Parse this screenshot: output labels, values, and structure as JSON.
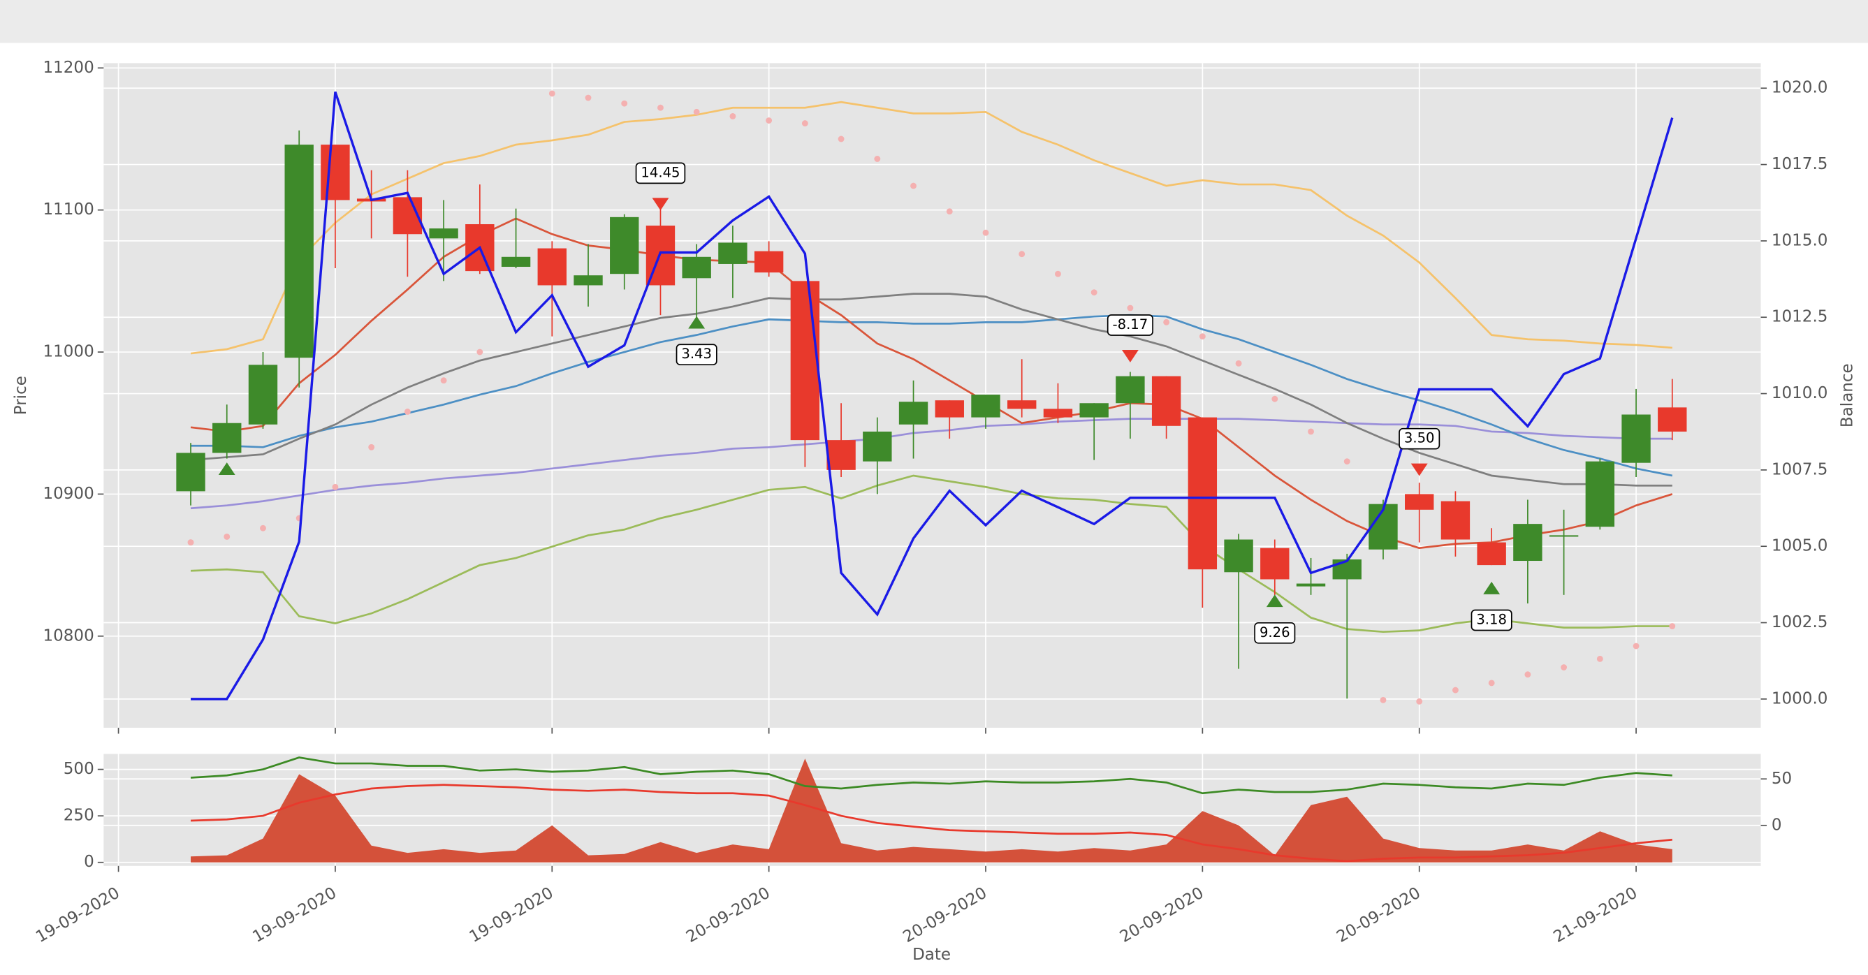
{
  "chart_data": [
    {
      "type": "candlestick",
      "ylabel": "Price",
      "y2label": "Balance",
      "xlim": [
        -2.41,
        43.45
      ],
      "ylim": [
        10735.5,
        11203.4
      ],
      "yticks": [
        10800,
        10900,
        11000,
        11100,
        11200
      ],
      "y2lim": [
        999.06,
        1020.82
      ],
      "y2ticks": [
        {
          "value": 1000,
          "label": "1000.0"
        },
        {
          "value": 1002.5,
          "label": "1002.5"
        },
        {
          "value": 1005,
          "label": "1005.0"
        },
        {
          "value": 1007.5,
          "label": "1007.5"
        },
        {
          "value": 1010,
          "label": "1010.0"
        },
        {
          "value": 1012.5,
          "label": "1012.5"
        },
        {
          "value": 1015,
          "label": "1015.0"
        },
        {
          "value": 1017.5,
          "label": "1017.5"
        },
        {
          "value": 1020,
          "label": "1020.0"
        }
      ],
      "grid": true,
      "up_color": "#3e8a2a",
      "down_color": "#e8392c",
      "open": [
        10902,
        10929,
        10949,
        10996,
        11146,
        11108,
        11109,
        11080,
        11090,
        11060,
        11073,
        11047,
        11055,
        11089,
        11052,
        11062,
        11071,
        11050,
        10938,
        10923,
        10949,
        10966,
        10954,
        10966,
        10960,
        10954,
        10964,
        10983,
        10954,
        10845,
        10862,
        10835,
        10840,
        10861,
        10900,
        10895,
        10866,
        10853,
        10870,
        10877,
        10922,
        10961
      ],
      "high": [
        10936,
        10963,
        11000,
        11156,
        11146,
        11128,
        11128,
        11107,
        11118,
        11101,
        11078,
        11076,
        11097,
        11101,
        11076,
        11089,
        11078,
        11050,
        10964,
        10954,
        10980,
        10966,
        10970,
        10995,
        10978,
        10964,
        10986,
        10983,
        10954,
        10872,
        10868,
        10855,
        10858,
        10896,
        10908,
        10902,
        10876,
        10896,
        10889,
        10925,
        10974,
        10981
      ],
      "low": [
        10892,
        10925,
        10946,
        10975,
        11059,
        11080,
        11053,
        11050,
        11055,
        11059,
        11011,
        11032,
        11044,
        11026,
        11023,
        11038,
        11053,
        10919,
        10912,
        10900,
        10925,
        10939,
        10946,
        10954,
        10950,
        10924,
        10939,
        10939,
        10820,
        10777,
        10829,
        10829,
        10756,
        10854,
        10866,
        10856,
        10850,
        10823,
        10829,
        10875,
        10912,
        10938
      ],
      "close": [
        10929,
        10950,
        10991,
        11146,
        11107,
        11106,
        11083,
        11087,
        11057,
        11067,
        11047,
        11054,
        11095,
        11047,
        11067,
        11077,
        11056,
        10938,
        10917,
        10944,
        10965,
        10954,
        10970,
        10960,
        10954,
        10964,
        10983,
        10948,
        10847,
        10868,
        10840,
        10837,
        10854,
        10893,
        10889,
        10868,
        10850,
        10879,
        10871,
        10923,
        10956,
        10944
      ],
      "series": [
        {
          "type": "line",
          "color": "#f5c26b",
          "values": [
            10999,
            11002,
            11009,
            11065,
            11091,
            11111,
            11122,
            11133,
            11138,
            11146,
            11149,
            11153,
            11162,
            11164,
            11167,
            11172,
            11172,
            11172,
            11176,
            11172,
            11168,
            11168,
            11169,
            11155,
            11146,
            11135,
            11126,
            11117,
            11121,
            11118,
            11118,
            11114,
            11096,
            11082,
            11063,
            11038,
            11012,
            11009,
            11008,
            11006,
            11005,
            11003
          ]
        },
        {
          "type": "line",
          "color": "#9bbb59",
          "values": [
            10846,
            10847,
            10845,
            10814,
            10809,
            10816,
            10826,
            10838,
            10850,
            10855,
            10863,
            10871,
            10875,
            10883,
            10889,
            10896,
            10903,
            10905,
            10897,
            10906,
            10913,
            10909,
            10905,
            10900,
            10897,
            10896,
            10893,
            10891,
            10864,
            10847,
            10831,
            10813,
            10805,
            10803,
            10804,
            10809,
            10812,
            10809,
            10806,
            10806,
            10807,
            10807
          ]
        },
        {
          "type": "line",
          "color": "#9a8fd9",
          "values": [
            10890,
            10892,
            10895,
            10899,
            10903,
            10906,
            10908,
            10911,
            10913,
            10915,
            10918,
            10921,
            10924,
            10927,
            10929,
            10932,
            10933,
            10935,
            10937,
            10939,
            10943,
            10945,
            10948,
            10949,
            10951,
            10952,
            10953,
            10953,
            10953,
            10953,
            10952,
            10951,
            10950,
            10949,
            10949,
            10948,
            10944,
            10943,
            10941,
            10940,
            10939,
            10939
          ]
        },
        {
          "type": "line",
          "color": "#4c8fc4",
          "values": [
            10934,
            10934,
            10933,
            10941,
            10947,
            10951,
            10957,
            10963,
            10970,
            10976,
            10985,
            10993,
            11000,
            11007,
            11012,
            11018,
            11023,
            11022,
            11021,
            11021,
            11020,
            11020,
            11021,
            11021,
            11023,
            11025,
            11026,
            11025,
            11016,
            11009,
            11000,
            10991,
            10981,
            10973,
            10966,
            10958,
            10949,
            10939,
            10931,
            10925,
            10918,
            10913
          ]
        },
        {
          "type": "line",
          "color": "#7f7f7f",
          "values": [
            10924,
            10926,
            10928,
            10939,
            10949,
            10963,
            10975,
            10985,
            10994,
            11000,
            11006,
            11012,
            11018,
            11024,
            11027,
            11032,
            11038,
            11037,
            11037,
            11039,
            11041,
            11041,
            11039,
            11030,
            11023,
            11016,
            11011,
            11004,
            10994,
            10984,
            10974,
            10963,
            10950,
            10939,
            10929,
            10921,
            10913,
            10910,
            10907,
            10907,
            10906,
            10906
          ]
        },
        {
          "type": "line",
          "color": "#d9553a",
          "values": [
            10947,
            10944,
            10948,
            10978,
            10998,
            11022,
            11044,
            11067,
            11082,
            11094,
            11083,
            11075,
            11072,
            11068,
            11065,
            11064,
            11063,
            11042,
            11026,
            11006,
            10995,
            10980,
            10965,
            10950,
            10954,
            10958,
            10964,
            10963,
            10953,
            10933,
            10913,
            10896,
            10881,
            10870,
            10862,
            10865,
            10866,
            10871,
            10875,
            10881,
            10892,
            10900
          ]
        },
        {
          "type": "scatter",
          "color": "#f4b0b0",
          "values": [
            10866,
            10870,
            10876,
            10883,
            10905,
            10933,
            10958,
            10980,
            11000,
            null,
            11182,
            11179,
            11175,
            11172,
            11169,
            11166,
            11163,
            11161,
            11150,
            11136,
            11117,
            11099,
            11084,
            11069,
            11055,
            11042,
            11031,
            11021,
            11011,
            10992,
            10967,
            10944,
            10923,
            10755,
            10754,
            10762,
            10767,
            10773,
            10778,
            10784,
            10793,
            10807
          ]
        },
        {
          "type": "line",
          "axis": "y2",
          "color": "#1a1ae6",
          "values": [
            1000.0,
            1000.0,
            1001.95,
            1005.15,
            1019.88,
            1016.34,
            1016.57,
            1013.92,
            1014.78,
            1012.01,
            1013.22,
            1010.88,
            1011.58,
            1014.62,
            1014.62,
            1015.67,
            1016.45,
            1014.58,
            1004.13,
            1002.77,
            1005.26,
            1006.82,
            1005.69,
            1006.82,
            1006.28,
            1005.73,
            1006.59,
            1006.59,
            1006.59,
            1006.59,
            1006.59,
            1004.13,
            1004.52,
            1006.2,
            1010.14,
            1010.14,
            1010.14,
            1008.93,
            1010.64,
            1011.15,
            1015.09,
            1019.03
          ]
        }
      ],
      "markers": [
        {
          "type": "buy",
          "color": "#3e8a2a",
          "x": [
            1,
            14,
            30,
            36
          ],
          "values": [
            10917,
            11020,
            10824,
            10833
          ],
          "labels": [
            null,
            "3.43",
            "9.26",
            "3.18"
          ]
        },
        {
          "type": "sell",
          "color": "#e8392c",
          "x": [
            13,
            26,
            34
          ],
          "values": [
            11105,
            10998,
            10918
          ],
          "labels": [
            "14.45",
            "-8.17",
            "3.50"
          ]
        }
      ]
    },
    {
      "type": "area",
      "xlabel": "Date",
      "xlim": [
        -2.41,
        43.45
      ],
      "xticks": [
        {
          "value": -2,
          "label": "19-09-2020"
        },
        {
          "value": 4,
          "label": "19-09-2020"
        },
        {
          "value": 10,
          "label": "19-09-2020"
        },
        {
          "value": 16,
          "label": "20-09-2020"
        },
        {
          "value": 22,
          "label": "20-09-2020"
        },
        {
          "value": 28,
          "label": "20-09-2020"
        },
        {
          "value": 34,
          "label": "20-09-2020"
        },
        {
          "value": 40,
          "label": "21-09-2020"
        }
      ],
      "ylim": [
        -19,
        583
      ],
      "yticks": [
        0,
        250,
        500
      ],
      "y2lim": [
        -43.6,
        76.9
      ],
      "y2ticks": [
        0,
        50
      ],
      "grid": true,
      "series": [
        {
          "type": "area",
          "color": "#d4513a",
          "values": [
            32,
            38,
            128,
            474,
            359,
            90,
            51,
            71,
            51,
            64,
            199,
            38,
            45,
            109,
            51,
            96,
            71,
            558,
            103,
            64,
            83,
            71,
            58,
            71,
            58,
            77,
            64,
            96,
            276,
            199,
            38,
            308,
            353,
            128,
            77,
            64,
            64,
            96,
            64,
            167,
            96,
            71
          ]
        },
        {
          "type": "line",
          "axis": "y2",
          "color": "#3c8a24",
          "values": [
            51.3,
            53.8,
            60.3,
            73.1,
            66.7,
            66.7,
            64.1,
            64.1,
            59,
            60.3,
            57.7,
            59,
            62.8,
            55.1,
            57.7,
            59,
            55.1,
            42.3,
            39.7,
            43.6,
            46.2,
            44.9,
            47.4,
            46.2,
            46.2,
            47.4,
            50,
            46.2,
            34.6,
            38.5,
            35.9,
            35.9,
            38.5,
            44.9,
            43.6,
            41,
            39.7,
            44.9,
            43.6,
            51.3,
            56.4,
            53.8
          ]
        },
        {
          "type": "line",
          "axis": "y2",
          "color": "#e8392c",
          "values": [
            5.1,
            6.4,
            10.3,
            24.4,
            33.3,
            39.7,
            42.3,
            43.6,
            42.3,
            41,
            38.5,
            37.2,
            38.5,
            35.9,
            34.6,
            34.6,
            32.1,
            21.8,
            10.3,
            2.6,
            -1.3,
            -5.1,
            -6.4,
            -7.7,
            -9,
            -9,
            -7.7,
            -10.3,
            -20.5,
            -25.6,
            -32.1,
            -35.9,
            -38.5,
            -35.9,
            -34.6,
            -34.6,
            -33.3,
            -32.1,
            -29.5,
            -24.4,
            -19.2,
            -15.4
          ]
        }
      ]
    }
  ]
}
